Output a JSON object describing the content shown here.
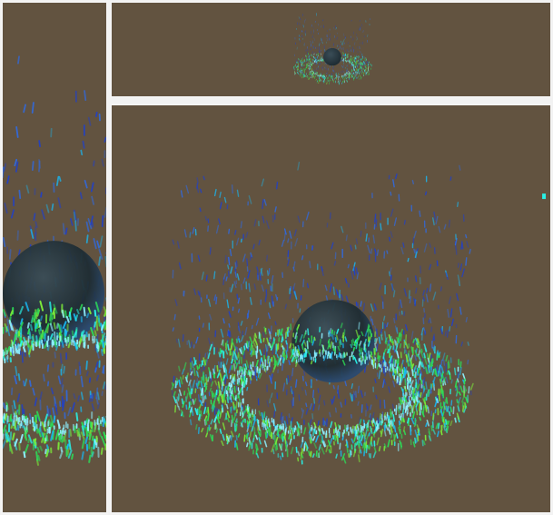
{
  "scene": {
    "background_color": "#625340",
    "frame_color": "#f4f4f4",
    "particle_palette": [
      "#1b3fd4",
      "#2b6cf0",
      "#19b7f2",
      "#28f0e6",
      "#8ef0ff",
      "#2cdc58",
      "#7be83a"
    ],
    "sphere_color": "#1e2c33",
    "icons": [
      "particle-effect-icon",
      "sphere-icon"
    ]
  },
  "viewports": [
    {
      "name": "left-side-viewport"
    },
    {
      "name": "top-thumbnail-viewport"
    },
    {
      "name": "main-viewport"
    }
  ]
}
